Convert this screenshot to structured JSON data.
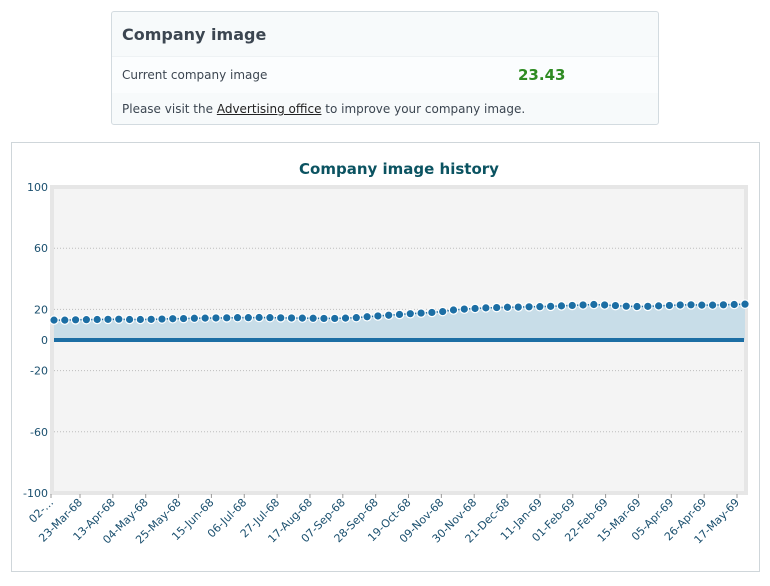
{
  "card": {
    "title": "Company image",
    "current_label": "Current company image",
    "current_value": "23.43",
    "visit_prefix": "Please visit the",
    "visit_link": "Advertising office",
    "visit_suffix": "to improve your company image."
  },
  "chart_data": {
    "type": "area",
    "title": "Company image history",
    "xlabel": "",
    "ylabel": "",
    "ylim": [
      -100,
      100
    ],
    "yticks": [
      100,
      60,
      20,
      0,
      -20,
      -60,
      -100
    ],
    "grid": true,
    "tick_labels": [
      "02-…",
      "23-Mar-68",
      "13-Apr-68",
      "04-May-68",
      "25-May-68",
      "15-Jun-68",
      "06-Jul-68",
      "27-Jul-68",
      "17-Aug-68",
      "07-Sep-68",
      "28-Sep-68",
      "19-Oct-68",
      "09-Nov-68",
      "30-Nov-68",
      "21-Dec-68",
      "11-Jan-69",
      "01-Feb-69",
      "22-Feb-69",
      "15-Mar-69",
      "05-Apr-69",
      "26-Apr-69",
      "17-May-69"
    ],
    "series": [
      {
        "values": [
          13,
          13,
          13.2,
          13.3,
          13.4,
          13.5,
          13.6,
          13.4,
          13.4,
          13.5,
          13.7,
          13.9,
          14,
          14.2,
          14.3,
          14.4,
          14.5,
          14.6,
          14.6,
          14.7,
          14.6,
          14.5,
          14.4,
          14.3,
          14.2,
          14.1,
          14.1,
          14.3,
          14.6,
          15.2,
          15.7,
          16.2,
          16.7,
          17.2,
          17.6,
          18,
          18.6,
          19.6,
          20.2,
          20.6,
          21,
          21.2,
          21.4,
          21.5,
          21.7,
          21.8,
          22,
          22.3,
          22.6,
          22.9,
          23.2,
          22.9,
          22.5,
          22.1,
          21.9,
          22,
          22.3,
          22.6,
          22.9,
          23,
          22.8,
          22.8,
          23,
          23.2,
          23.43
        ]
      }
    ],
    "colors": {
      "line": "#1c6ea4",
      "area": "#c8dde8",
      "zero_line": "#1c6ea4",
      "title": "#0b5361",
      "axis_text": "#1a4f6e",
      "plot_bg": "#f4f4f4"
    }
  }
}
